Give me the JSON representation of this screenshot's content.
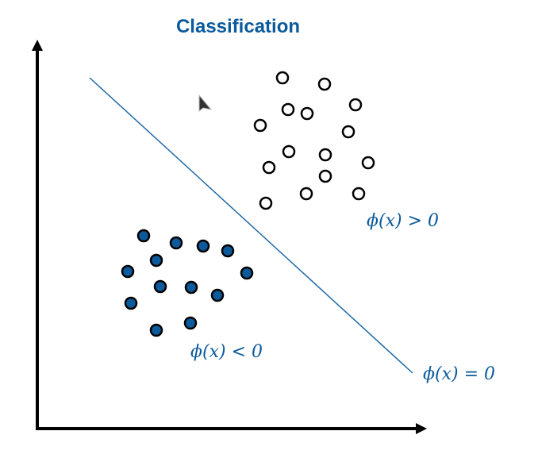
{
  "title": "Classification",
  "labels": {
    "positive_region": "ϕ(x) > 0",
    "negative_region": "ϕ(x) < 0",
    "boundary": "ϕ(x) = 0"
  },
  "colors": {
    "accent": "#0b5a9c",
    "filled_point": "#0b5a9c",
    "hollow_point": "#ffffff",
    "point_outline": "#000000",
    "axis": "#000000"
  },
  "icons": {
    "cursor": "mouse-pointer-icon"
  }
}
